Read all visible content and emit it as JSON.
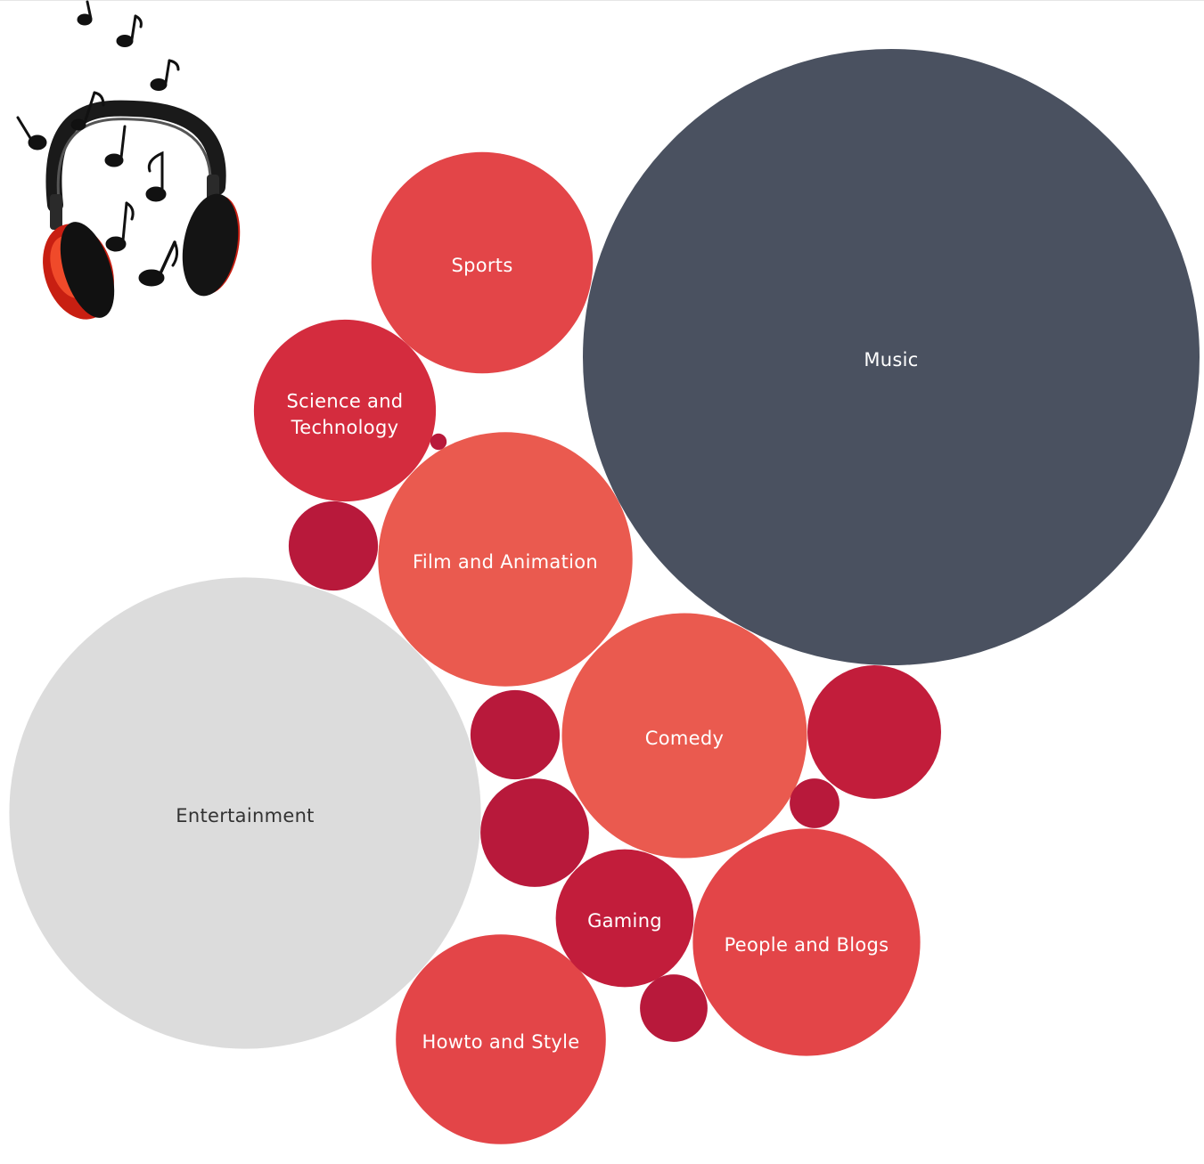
{
  "chart_data": {
    "type": "bubble",
    "title": "",
    "colors": {
      "music": "#4a5160",
      "entertainment": "#dcdcdc",
      "red_light": "#ea5a4f",
      "red_mid": "#e34548",
      "red_dark": "#d42c3e",
      "crimson": "#c21d3b",
      "maroon": "#b8193b",
      "label_light": "#ffffff",
      "label_dark": "#333333"
    },
    "bubbles": [
      {
        "label": "Music",
        "value": 1000,
        "color": "music",
        "label_color": "label_light"
      },
      {
        "label": "Entertainment",
        "value": 585,
        "color": "entertainment",
        "label_color": "label_dark"
      },
      {
        "label": "Film and Animation",
        "value": 170,
        "color": "red_light",
        "label_color": "label_light"
      },
      {
        "label": "Comedy",
        "value": 158,
        "color": "red_light",
        "label_color": "label_light"
      },
      {
        "label": "People and Blogs",
        "value": 136,
        "color": "red_mid",
        "label_color": "label_light"
      },
      {
        "label": "Sports",
        "value": 129,
        "color": "red_mid",
        "label_color": "label_light"
      },
      {
        "label": "Howto and Style",
        "value": 116,
        "color": "red_mid",
        "label_color": "label_light"
      },
      {
        "label": "Science and Technology",
        "value": 87,
        "color": "red_dark",
        "label_color": "label_light"
      },
      {
        "label": "Gaming",
        "value": 50,
        "color": "crimson",
        "label_color": "label_light"
      },
      {
        "label": "",
        "value": 47,
        "color": "crimson"
      },
      {
        "label": "",
        "value": 31,
        "color": "maroon"
      },
      {
        "label": "",
        "value": 21,
        "color": "maroon"
      },
      {
        "label": "",
        "value": 21,
        "color": "maroon"
      },
      {
        "label": "",
        "value": 12,
        "color": "maroon"
      },
      {
        "label": "",
        "value": 6.5,
        "color": "maroon"
      },
      {
        "label": "",
        "value": 0.7,
        "color": "maroon"
      }
    ]
  }
}
